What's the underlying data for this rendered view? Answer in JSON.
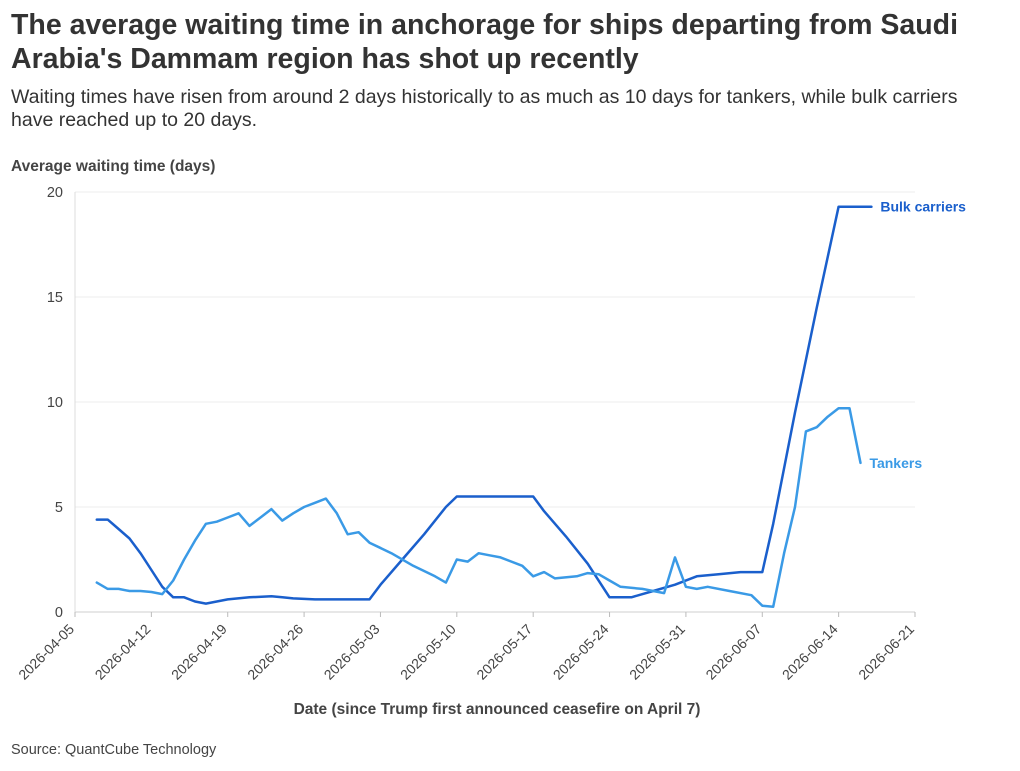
{
  "title": "The average waiting time in anchorage for ships departing from Saudi Arabia's Dammam region has shot up recently",
  "subtitle": "Waiting times have risen from around 2 days historically to as much as 10 days for tankers, while bulk carriers have reached up to 20 days.",
  "source": "Source: QuantCube Technology",
  "chart_data": {
    "type": "line",
    "ylabel": "Average waiting time (days)",
    "xlabel": "Date (since Trump first announced ceasefire on April 7)",
    "ylim": [
      0,
      20
    ],
    "yticks": [
      0,
      5,
      10,
      15,
      20
    ],
    "xlim": [
      "2026-04-05",
      "2026-06-21"
    ],
    "xticks": [
      "2026-04-05",
      "2026-04-12",
      "2026-04-19",
      "2026-04-26",
      "2026-05-03",
      "2026-05-10",
      "2026-05-17",
      "2026-05-24",
      "2026-05-31",
      "2026-06-07",
      "2026-06-14",
      "2026-06-21"
    ],
    "grid": true,
    "series": [
      {
        "name": "Bulk carriers",
        "color": "#1a5fcc",
        "points": [
          [
            "2026-04-07",
            4.4
          ],
          [
            "2026-04-08",
            4.4
          ],
          [
            "2026-04-09",
            3.95
          ],
          [
            "2026-04-10",
            3.5
          ],
          [
            "2026-04-11",
            2.8
          ],
          [
            "2026-04-12",
            2.0
          ],
          [
            "2026-04-13",
            1.2
          ],
          [
            "2026-04-14",
            0.7
          ],
          [
            "2026-04-15",
            0.7
          ],
          [
            "2026-04-16",
            0.5
          ],
          [
            "2026-04-17",
            0.4
          ],
          [
            "2026-04-18",
            0.5
          ],
          [
            "2026-04-19",
            0.6
          ],
          [
            "2026-04-21",
            0.7
          ],
          [
            "2026-04-23",
            0.75
          ],
          [
            "2026-04-24",
            0.7
          ],
          [
            "2026-04-25",
            0.65
          ],
          [
            "2026-04-27",
            0.6
          ],
          [
            "2026-04-30",
            0.6
          ],
          [
            "2026-05-02",
            0.6
          ],
          [
            "2026-05-03",
            1.3
          ],
          [
            "2026-05-05",
            2.5
          ],
          [
            "2026-05-07",
            3.7
          ],
          [
            "2026-05-09",
            5.0
          ],
          [
            "2026-05-10",
            5.5
          ],
          [
            "2026-05-12",
            5.5
          ],
          [
            "2026-05-14",
            5.5
          ],
          [
            "2026-05-16",
            5.5
          ],
          [
            "2026-05-17",
            5.5
          ],
          [
            "2026-05-18",
            4.8
          ],
          [
            "2026-05-20",
            3.6
          ],
          [
            "2026-05-22",
            2.3
          ],
          [
            "2026-05-24",
            0.7
          ],
          [
            "2026-05-26",
            0.7
          ],
          [
            "2026-05-28",
            1.0
          ],
          [
            "2026-05-30",
            1.3
          ],
          [
            "2026-06-01",
            1.7
          ],
          [
            "2026-06-03",
            1.8
          ],
          [
            "2026-06-05",
            1.9
          ],
          [
            "2026-06-07",
            1.9
          ],
          [
            "2026-06-08",
            4.2
          ],
          [
            "2026-06-10",
            9.5
          ],
          [
            "2026-06-12",
            14.5
          ],
          [
            "2026-06-14",
            19.3
          ],
          [
            "2026-06-16",
            19.3
          ],
          [
            "2026-06-17",
            19.3
          ]
        ]
      },
      {
        "name": "Tankers",
        "color": "#3a9ae6",
        "points": [
          [
            "2026-04-07",
            1.4
          ],
          [
            "2026-04-08",
            1.1
          ],
          [
            "2026-04-09",
            1.1
          ],
          [
            "2026-04-10",
            1.0
          ],
          [
            "2026-04-11",
            1.0
          ],
          [
            "2026-04-12",
            0.95
          ],
          [
            "2026-04-13",
            0.85
          ],
          [
            "2026-04-14",
            1.5
          ],
          [
            "2026-04-15",
            2.5
          ],
          [
            "2026-04-16",
            3.4
          ],
          [
            "2026-04-17",
            4.2
          ],
          [
            "2026-04-18",
            4.3
          ],
          [
            "2026-04-19",
            4.5
          ],
          [
            "2026-04-20",
            4.7
          ],
          [
            "2026-04-21",
            4.1
          ],
          [
            "2026-04-22",
            4.5
          ],
          [
            "2026-04-23",
            4.9
          ],
          [
            "2026-04-24",
            4.35
          ],
          [
            "2026-04-25",
            4.7
          ],
          [
            "2026-04-26",
            5.0
          ],
          [
            "2026-04-27",
            5.2
          ],
          [
            "2026-04-28",
            5.4
          ],
          [
            "2026-04-29",
            4.7
          ],
          [
            "2026-04-30",
            3.7
          ],
          [
            "2026-05-01",
            3.8
          ],
          [
            "2026-05-02",
            3.3
          ],
          [
            "2026-05-04",
            2.8
          ],
          [
            "2026-05-06",
            2.2
          ],
          [
            "2026-05-08",
            1.7
          ],
          [
            "2026-05-09",
            1.4
          ],
          [
            "2026-05-10",
            2.5
          ],
          [
            "2026-05-11",
            2.4
          ],
          [
            "2026-05-12",
            2.8
          ],
          [
            "2026-05-13",
            2.7
          ],
          [
            "2026-05-14",
            2.6
          ],
          [
            "2026-05-16",
            2.2
          ],
          [
            "2026-05-17",
            1.7
          ],
          [
            "2026-05-18",
            1.9
          ],
          [
            "2026-05-19",
            1.6
          ],
          [
            "2026-05-21",
            1.7
          ],
          [
            "2026-05-22",
            1.85
          ],
          [
            "2026-05-23",
            1.8
          ],
          [
            "2026-05-24",
            1.5
          ],
          [
            "2026-05-25",
            1.2
          ],
          [
            "2026-05-27",
            1.1
          ],
          [
            "2026-05-29",
            0.9
          ],
          [
            "2026-05-30",
            2.6
          ],
          [
            "2026-05-31",
            1.2
          ],
          [
            "2026-06-01",
            1.1
          ],
          [
            "2026-06-02",
            1.2
          ],
          [
            "2026-06-04",
            1.0
          ],
          [
            "2026-06-06",
            0.8
          ],
          [
            "2026-06-07",
            0.3
          ],
          [
            "2026-06-08",
            0.25
          ],
          [
            "2026-06-09",
            2.8
          ],
          [
            "2026-06-10",
            5.0
          ],
          [
            "2026-06-11",
            8.6
          ],
          [
            "2026-06-12",
            8.8
          ],
          [
            "2026-06-13",
            9.3
          ],
          [
            "2026-06-14",
            9.7
          ],
          [
            "2026-06-15",
            9.7
          ],
          [
            "2026-06-16",
            7.1
          ]
        ]
      }
    ]
  }
}
